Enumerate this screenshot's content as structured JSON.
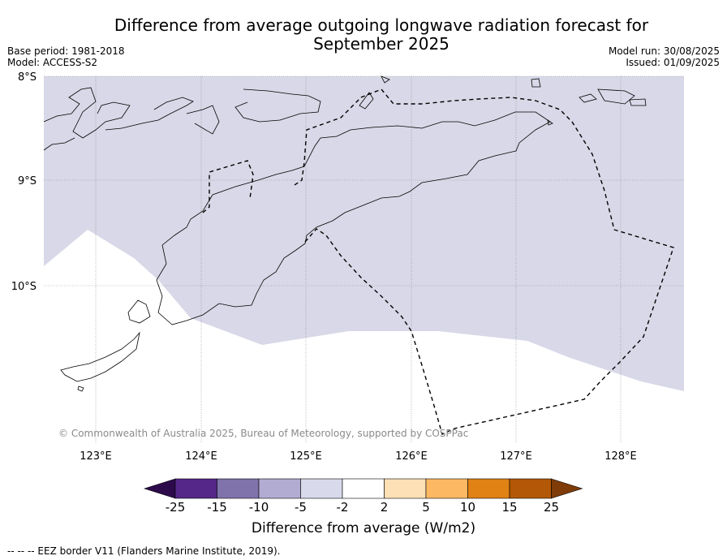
{
  "header": {
    "title_line1": "Difference from average outgoing longwave radiation forecast for",
    "title_line2": "September 2025",
    "base_period": "Base period: 1981-2018",
    "model": "Model: ACCESS-S2",
    "model_run": "Model run: 30/08/2025",
    "issued": "Issued: 01/09/2025"
  },
  "map": {
    "lat_labels": [
      "8°S",
      "9°S",
      "10°S"
    ],
    "lon_labels": [
      "123°E",
      "124°E",
      "125°E",
      "126°E",
      "127°E",
      "128°E"
    ],
    "copyright": "© Commonwealth of Australia 2025, Bureau of Meteorology, supported by COSPPac",
    "shading_color": "#d8d8e8"
  },
  "colorbar": {
    "colors": [
      "#2d0b4b",
      "#542788",
      "#8073ac",
      "#b2abd2",
      "#d8daeb",
      "#ffffff",
      "#fee0b6",
      "#fdb863",
      "#e08214",
      "#b35806",
      "#7f3b08"
    ],
    "tick_labels": [
      "-25",
      "-15",
      "-10",
      "-5",
      "-2",
      "2",
      "5",
      "10",
      "15",
      "25"
    ],
    "label": "Difference from average (W/m2)"
  },
  "footer": {
    "legend": "--  --  -- EEZ border V11 (Flanders Marine Institute, 2019)."
  }
}
